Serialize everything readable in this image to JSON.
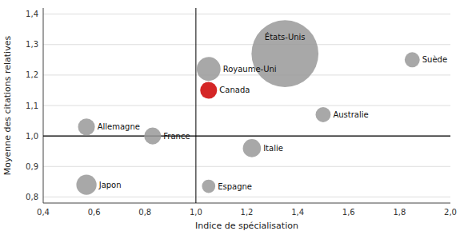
{
  "chart_data": {
    "type": "bubble",
    "xlabel": "Indice de spécialisation",
    "ylabel": "Moyenne des citations relatives",
    "labels": [
      "États-Unis",
      "Royaume-Uni",
      "Canada",
      "Allemagne",
      "France",
      "Australie",
      "Italie",
      "Japon",
      "Espagne",
      "Suède"
    ],
    "x": [
      1.35,
      1.05,
      1.05,
      0.57,
      0.83,
      1.5,
      1.22,
      0.57,
      1.05,
      1.85
    ],
    "values": [
      1.27,
      1.22,
      1.15,
      1.03,
      1.0,
      1.07,
      0.96,
      0.84,
      0.835,
      1.25
    ],
    "sizes": [
      5500,
      700,
      350,
      350,
      350,
      280,
      400,
      500,
      220,
      280
    ],
    "colors": [
      "#999999",
      "#999999",
      "#cc0000",
      "#999999",
      "#999999",
      "#999999",
      "#999999",
      "#999999",
      "#999999",
      "#999999"
    ],
    "xlim": [
      0.4,
      2.0
    ],
    "ylim": [
      0.78,
      1.42
    ],
    "xticks": [
      {
        "value": 0.4,
        "label": "0,4"
      },
      {
        "value": 0.6,
        "label": "0,6"
      },
      {
        "value": 0.8,
        "label": "0,8"
      },
      {
        "value": 1.0,
        "label": "1,0"
      },
      {
        "value": 1.2,
        "label": "1,2"
      },
      {
        "value": 1.4,
        "label": "1,4"
      },
      {
        "value": 1.6,
        "label": "1,6"
      },
      {
        "value": 1.8,
        "label": "1,8"
      },
      {
        "value": 2.0,
        "label": "2,0"
      }
    ],
    "yticks": [
      {
        "value": 0.8,
        "label": "0,8"
      },
      {
        "value": 0.9,
        "label": "0,9"
      },
      {
        "value": 1.0,
        "label": "1,0"
      },
      {
        "value": 1.1,
        "label": "1,1"
      },
      {
        "value": 1.2,
        "label": "1,2"
      },
      {
        "value": 1.3,
        "label": "1,3"
      },
      {
        "value": 1.4,
        "label": "1,4"
      }
    ],
    "grid": true,
    "reference_x": 1.0,
    "reference_y": 1.0
  }
}
